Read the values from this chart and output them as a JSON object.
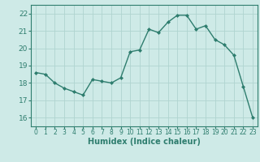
{
  "x": [
    0,
    1,
    2,
    3,
    4,
    5,
    6,
    7,
    8,
    9,
    10,
    11,
    12,
    13,
    14,
    15,
    16,
    17,
    18,
    19,
    20,
    21,
    22,
    23
  ],
  "y": [
    18.6,
    18.5,
    18.0,
    17.7,
    17.5,
    17.3,
    18.2,
    18.1,
    18.0,
    18.3,
    19.8,
    19.9,
    21.1,
    20.9,
    21.5,
    21.9,
    21.9,
    21.1,
    21.3,
    20.5,
    20.2,
    19.6,
    17.8,
    16.0
  ],
  "line_color": "#2e7d6e",
  "marker": "D",
  "marker_size": 2.0,
  "bg_color": "#ceeae7",
  "grid_color": "#b0d4d0",
  "tick_color": "#2e7d6e",
  "xlabel": "Humidex (Indice chaleur)",
  "xlabel_fontsize": 7.0,
  "ylim": [
    15.5,
    22.5
  ],
  "xlim": [
    -0.5,
    23.5
  ],
  "yticks": [
    16,
    17,
    18,
    19,
    20,
    21,
    22
  ],
  "xticks": [
    0,
    1,
    2,
    3,
    4,
    5,
    6,
    7,
    8,
    9,
    10,
    11,
    12,
    13,
    14,
    15,
    16,
    17,
    18,
    19,
    20,
    21,
    22,
    23
  ],
  "tick_fontsize": 5.5,
  "ytick_fontsize": 6.5,
  "linewidth": 1.0
}
